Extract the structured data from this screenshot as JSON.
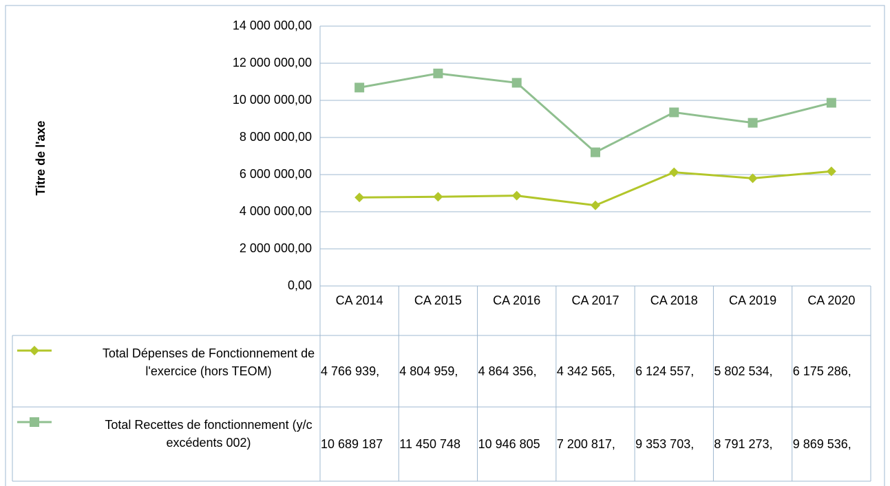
{
  "chart_data": {
    "type": "line",
    "y_axis_label": "Titre de l'axe",
    "categories": [
      "CA 2014",
      "CA 2015",
      "CA 2016",
      "CA 2017",
      "CA 2018",
      "CA 2019",
      "CA 2020"
    ],
    "series": [
      {
        "name": "Total Dépenses de Fonctionnement de l'exercice (hors TEOM)",
        "color": "#b2c62a",
        "marker": "diamond",
        "values": [
          4766939,
          4804959,
          4864356,
          4342565,
          6124557,
          5802534,
          6175286
        ],
        "value_labels": [
          "4 766 939,",
          "4 804 959,",
          "4 864 356,",
          "4 342 565,",
          "6 124 557,",
          "5 802 534,",
          "6 175 286,"
        ]
      },
      {
        "name": "Total Recettes de fonctionnement (y/c excédents 002)",
        "color": "#8fbf8f",
        "marker": "square",
        "values": [
          10689187,
          11450748,
          10946805,
          7200817,
          9353703,
          8791273,
          9869536
        ],
        "value_labels": [
          "10 689 187",
          "11 450 748",
          "10 946 805",
          "7 200 817,",
          "9 353 703,",
          "8 791 273,",
          "9 869 536,"
        ]
      }
    ],
    "ylim": [
      0,
      14000000
    ],
    "yticks": [
      {
        "value": 0,
        "label": "0,00"
      },
      {
        "value": 2000000,
        "label": "2 000 000,00"
      },
      {
        "value": 4000000,
        "label": "4 000 000,00"
      },
      {
        "value": 6000000,
        "label": "6 000 000,00"
      },
      {
        "value": 8000000,
        "label": "8 000 000,00"
      },
      {
        "value": 10000000,
        "label": "10 000 000,00"
      },
      {
        "value": 12000000,
        "label": "12 000 000,00"
      },
      {
        "value": 14000000,
        "label": "14 000 000,00"
      }
    ],
    "grid": true
  }
}
